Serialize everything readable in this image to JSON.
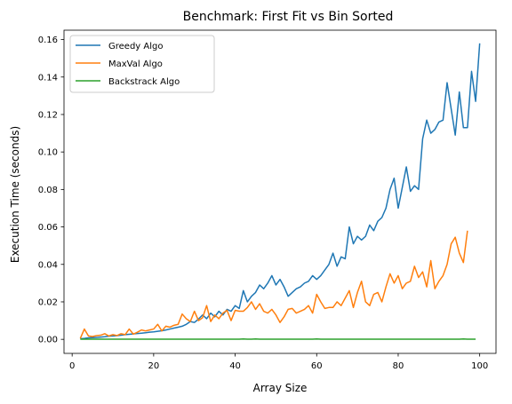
{
  "chart_data": {
    "type": "line",
    "title": "Benchmark: First Fit vs Bin Sorted",
    "xlabel": "Array Size",
    "ylabel": "Execution Time (seconds)",
    "xlim": [
      -2,
      104
    ],
    "ylim": [
      -0.0075,
      0.165
    ],
    "xticks": [
      0,
      20,
      40,
      60,
      80,
      100
    ],
    "xtick_labels": [
      "0",
      "20",
      "40",
      "60",
      "80",
      "100"
    ],
    "yticks": [
      0.0,
      0.02,
      0.04,
      0.06,
      0.08,
      0.1,
      0.12,
      0.14,
      0.16
    ],
    "ytick_labels": [
      "0.00",
      "0.02",
      "0.04",
      "0.06",
      "0.08",
      "0.10",
      "0.12",
      "0.14",
      "0.16"
    ],
    "legend_position": "top-left",
    "grid": false,
    "x_start": 2,
    "series": [
      {
        "name": "Greedy Algo",
        "color": "#1f77b4",
        "values": [
          0.0003,
          0.0005,
          0.0008,
          0.0009,
          0.001,
          0.0012,
          0.0014,
          0.0017,
          0.0018,
          0.002,
          0.0022,
          0.0025,
          0.0027,
          0.0029,
          0.0031,
          0.0033,
          0.0035,
          0.0038,
          0.004,
          0.0043,
          0.0046,
          0.005,
          0.0055,
          0.006,
          0.0065,
          0.007,
          0.008,
          0.0095,
          0.009,
          0.0108,
          0.013,
          0.011,
          0.014,
          0.012,
          0.015,
          0.013,
          0.016,
          0.015,
          0.018,
          0.0165,
          0.026,
          0.02,
          0.023,
          0.025,
          0.029,
          0.027,
          0.03,
          0.034,
          0.029,
          0.032,
          0.028,
          0.023,
          0.025,
          0.027,
          0.028,
          0.03,
          0.031,
          0.034,
          0.032,
          0.034,
          0.037,
          0.04,
          0.046,
          0.039,
          0.044,
          0.043,
          0.06,
          0.051,
          0.055,
          0.053,
          0.055,
          0.061,
          0.058,
          0.063,
          0.065,
          0.07,
          0.08,
          0.086,
          0.07,
          0.081,
          0.092,
          0.079,
          0.082,
          0.08,
          0.107,
          0.117,
          0.11,
          0.112,
          0.116,
          0.117,
          0.137,
          0.123,
          0.109,
          0.132,
          0.113,
          0.113,
          0.143,
          0.127,
          0.158
        ]
      },
      {
        "name": "MaxVal Algo",
        "color": "#ff7f0e",
        "values": [
          0.0005,
          0.0055,
          0.0018,
          0.0015,
          0.002,
          0.0022,
          0.003,
          0.0018,
          0.0025,
          0.002,
          0.003,
          0.0025,
          0.0055,
          0.0028,
          0.0038,
          0.005,
          0.0045,
          0.005,
          0.0055,
          0.008,
          0.0045,
          0.007,
          0.0065,
          0.0075,
          0.008,
          0.0135,
          0.011,
          0.0095,
          0.015,
          0.01,
          0.0115,
          0.018,
          0.0095,
          0.013,
          0.011,
          0.014,
          0.0155,
          0.01,
          0.0155,
          0.015,
          0.015,
          0.017,
          0.02,
          0.016,
          0.019,
          0.015,
          0.014,
          0.016,
          0.013,
          0.009,
          0.012,
          0.016,
          0.0165,
          0.014,
          0.015,
          0.016,
          0.018,
          0.014,
          0.024,
          0.02,
          0.0165,
          0.017,
          0.017,
          0.02,
          0.018,
          0.022,
          0.026,
          0.017,
          0.025,
          0.031,
          0.02,
          0.018,
          0.024,
          0.025,
          0.02,
          0.028,
          0.035,
          0.03,
          0.034,
          0.027,
          0.03,
          0.031,
          0.039,
          0.033,
          0.036,
          0.028,
          0.042,
          0.027,
          0.031,
          0.034,
          0.04,
          0.051,
          0.0545,
          0.046,
          0.041,
          0.058
        ]
      },
      {
        "name": "Backstrack Algo",
        "color": "#2ca02c",
        "values": [
          0.0001,
          0.0001,
          0.0001,
          0.0001,
          0.0001,
          0.0001,
          0.0001,
          0.0001,
          0.0001,
          0.0001,
          0.0001,
          0.0001,
          0.0001,
          0.0001,
          0.0001,
          0.0001,
          0.0001,
          0.0001,
          0.0001,
          0.0001,
          0.0001,
          0.0001,
          0.0001,
          0.0001,
          0.0001,
          0.0001,
          0.0001,
          0.0001,
          0.0001,
          0.0001,
          0.0001,
          0.0001,
          0.0001,
          0.0001,
          0.0001,
          0.0001,
          0.0001,
          0.0001,
          0.0001,
          0.0001,
          0.0002,
          0.0001,
          0.0001,
          0.0002,
          0.0001,
          0.0001,
          0.0001,
          0.0001,
          0.0001,
          0.0001,
          0.0001,
          0.0001,
          0.0001,
          0.0001,
          0.0001,
          0.0001,
          0.0001,
          0.0001,
          0.0002,
          0.0001,
          0.0001,
          0.0001,
          0.0001,
          0.0001,
          0.0001,
          0.0001,
          0.0001,
          0.0001,
          0.0001,
          0.0001,
          0.0001,
          0.0001,
          0.0001,
          0.0001,
          0.0001,
          0.0001,
          0.0001,
          0.0001,
          0.0001,
          0.0001,
          0.0001,
          0.0001,
          0.0001,
          0.0001,
          0.0001,
          0.0001,
          0.0001,
          0.0001,
          0.0001,
          0.0001,
          0.0001,
          0.0001,
          0.0001,
          0.0001,
          0.0002,
          0.0001,
          0.0001,
          0.0001
        ]
      }
    ]
  }
}
